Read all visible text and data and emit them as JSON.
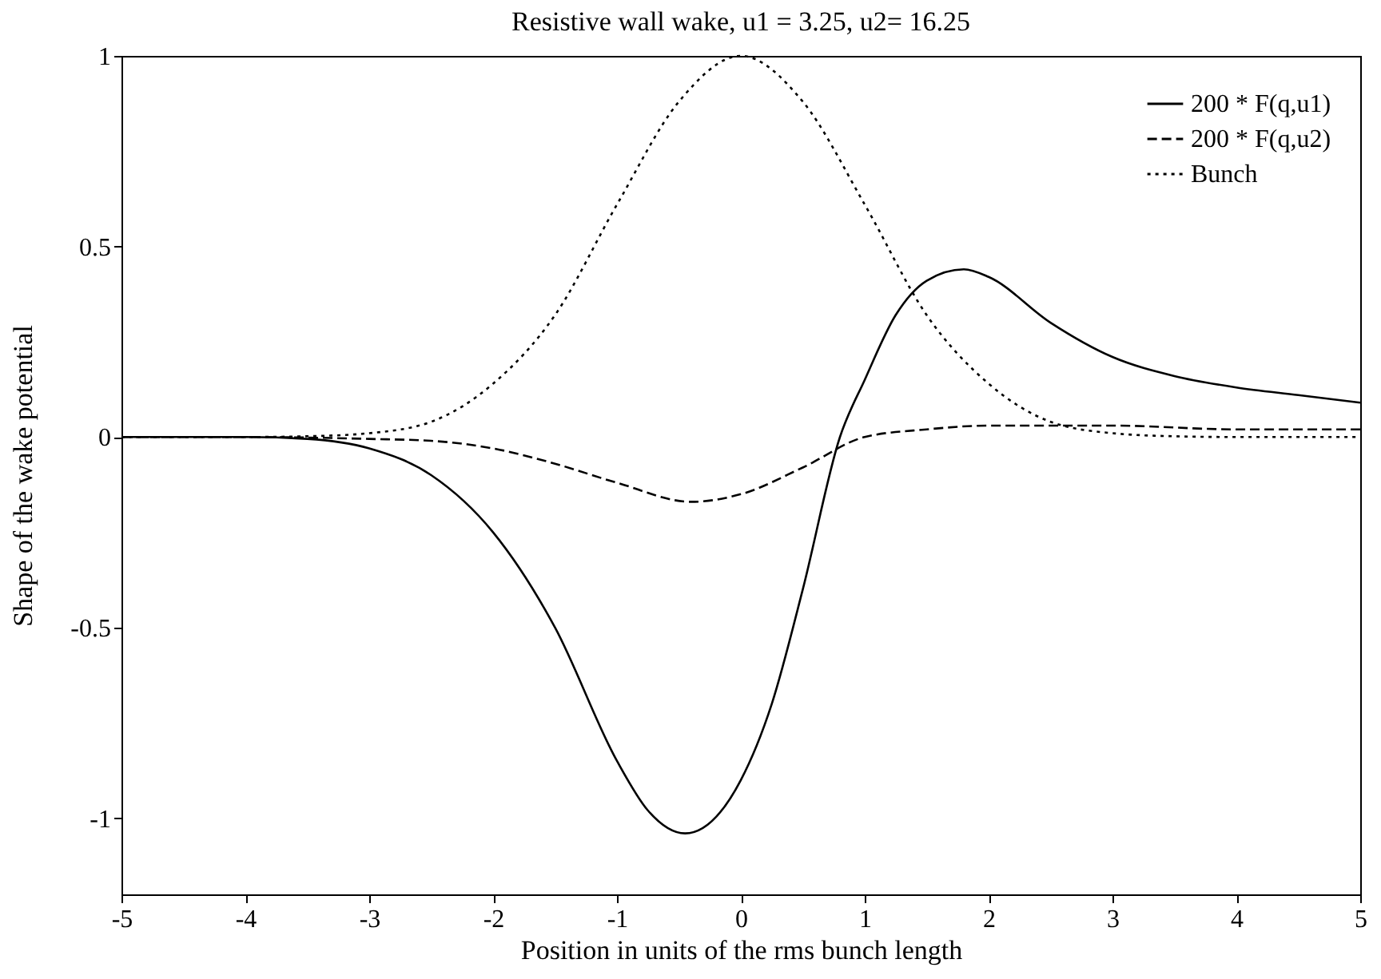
{
  "chart_data": {
    "type": "line",
    "title": "Resistive wall wake, u1 = 3.25, u2= 16.25",
    "xlabel": "Position in units of the rms bunch length",
    "ylabel": "Shape of the wake potential",
    "xlim": [
      -5,
      5
    ],
    "ylim": [
      -1.2,
      1
    ],
    "xticks": [
      -5,
      -4,
      -3,
      -2,
      -1,
      0,
      1,
      2,
      3,
      4,
      5
    ],
    "yticks": [
      -1,
      -0.5,
      0,
      0.5,
      1
    ],
    "grid": false,
    "legend": "top right",
    "marker": "none",
    "series": [
      {
        "name": "200 * F(q,u1)",
        "color": "#000000",
        "line_style": "solid",
        "x": [
          -5,
          -4,
          -3.5,
          -3,
          -2.5,
          -2,
          -1.5,
          -1,
          -0.75,
          -0.45,
          0,
          0.25,
          0.5,
          0.8,
          1,
          1.25,
          1.5,
          1.8,
          2,
          2.5,
          3,
          3.5,
          4,
          4.5,
          5
        ],
        "values": [
          0,
          0,
          -0.005,
          -0.03,
          -0.1,
          -0.25,
          -0.5,
          -0.85,
          -0.98,
          -1.04,
          -0.9,
          -0.7,
          -0.4,
          0,
          0.15,
          0.32,
          0.41,
          0.44,
          0.42,
          0.3,
          0.21,
          0.16,
          0.13,
          0.11,
          0.09
        ]
      },
      {
        "name": "200 * F(q,u2)",
        "color": "#000000",
        "line_style": "dashed",
        "x": [
          -5,
          -4,
          -3,
          -2.5,
          -2,
          -1.5,
          -1,
          -0.4,
          0,
          0.5,
          1,
          1.5,
          2,
          2.5,
          3,
          4,
          5
        ],
        "values": [
          0,
          0,
          -0.005,
          -0.01,
          -0.03,
          -0.07,
          -0.12,
          -0.17,
          -0.15,
          -0.08,
          0,
          0.02,
          0.03,
          0.03,
          0.03,
          0.02,
          0.02
        ]
      },
      {
        "name": "Bunch",
        "color": "#000000",
        "line_style": "dotted",
        "x": [
          -5,
          -4,
          -3.5,
          -3,
          -2.5,
          -2,
          -1.5,
          -1,
          -0.5,
          0,
          0.5,
          1,
          1.5,
          2,
          2.5,
          3,
          3.5,
          4,
          5
        ],
        "values": [
          0,
          0,
          0.002,
          0.01,
          0.04,
          0.14,
          0.32,
          0.61,
          0.88,
          1,
          0.88,
          0.61,
          0.32,
          0.14,
          0.04,
          0.01,
          0.002,
          0,
          0
        ]
      }
    ]
  }
}
